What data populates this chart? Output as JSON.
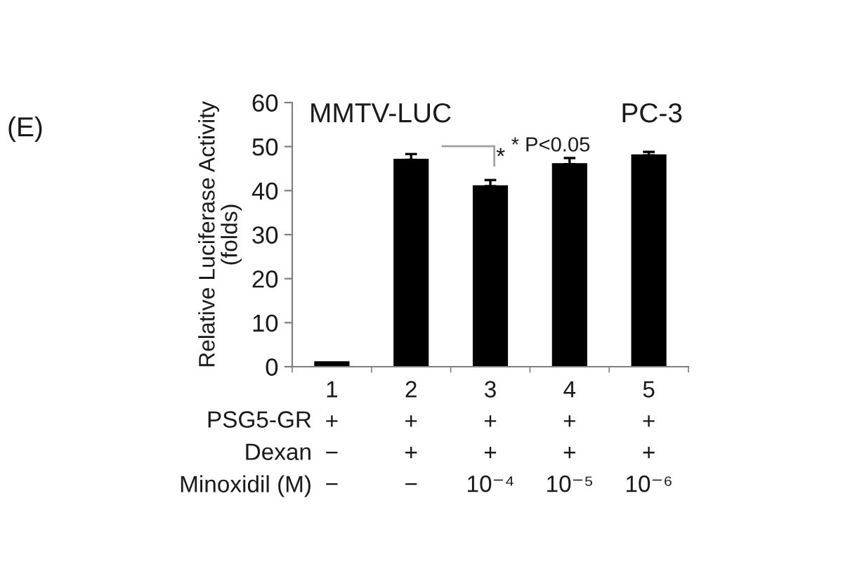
{
  "chart_data": {
    "type": "bar",
    "title": "MMTV-LUC",
    "ylabel": "Relative Luciferase Activity\n(folds)",
    "categories": [
      "1\n+\n−\n−",
      "2\n+\n+\n−",
      "3\n+\n+\n10⁻⁴",
      "4\n+\n+\n10⁻⁵",
      "5\n+\n+\n10⁻⁶"
    ],
    "values": [
      1,
      47,
      41,
      46,
      48
    ],
    "errors": [
      null,
      [
        47,
        48.3
      ],
      [
        41,
        42.4
      ],
      [
        46,
        47.4
      ],
      [
        48,
        48.8
      ]
    ],
    "color": "#000000",
    "ylim": [
      0,
      60
    ],
    "yticks": [
      0,
      10,
      20,
      30,
      40,
      50,
      60
    ],
    "grid": false,
    "annotations": [
      "(E)",
      "PC-3",
      "* P<0.05",
      "*",
      "PSG5-GR",
      "Dexan",
      "Minoxidil (M)"
    ]
  }
}
